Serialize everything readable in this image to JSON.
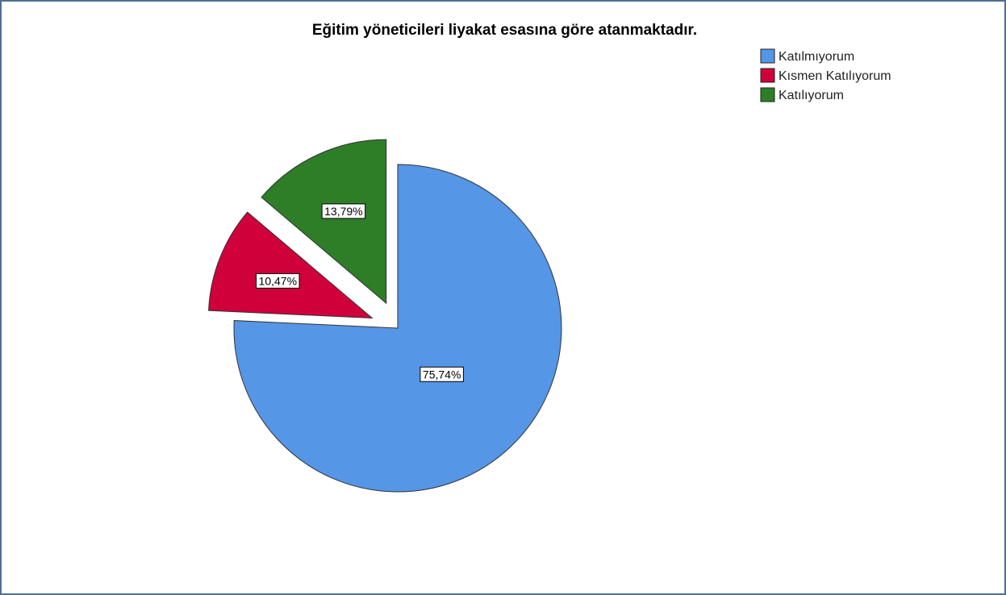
{
  "chart_data": {
    "type": "pie",
    "title": "Eğitim yöneticileri liyakat esasına göre atanmaktadır.",
    "legend_position": "top-right",
    "slices": [
      {
        "label": "Katılmıyorum",
        "value": 75.74,
        "value_label": "75,74%",
        "color": "#5596e6",
        "exploded": false
      },
      {
        "label": "Kısmen Katılıyorum",
        "value": 10.47,
        "value_label": "10,47%",
        "color": "#d0003a",
        "exploded": true
      },
      {
        "label": "Katılıyorum",
        "value": 13.79,
        "value_label": "13,79%",
        "color": "#2e7d27",
        "exploded": true
      }
    ]
  }
}
